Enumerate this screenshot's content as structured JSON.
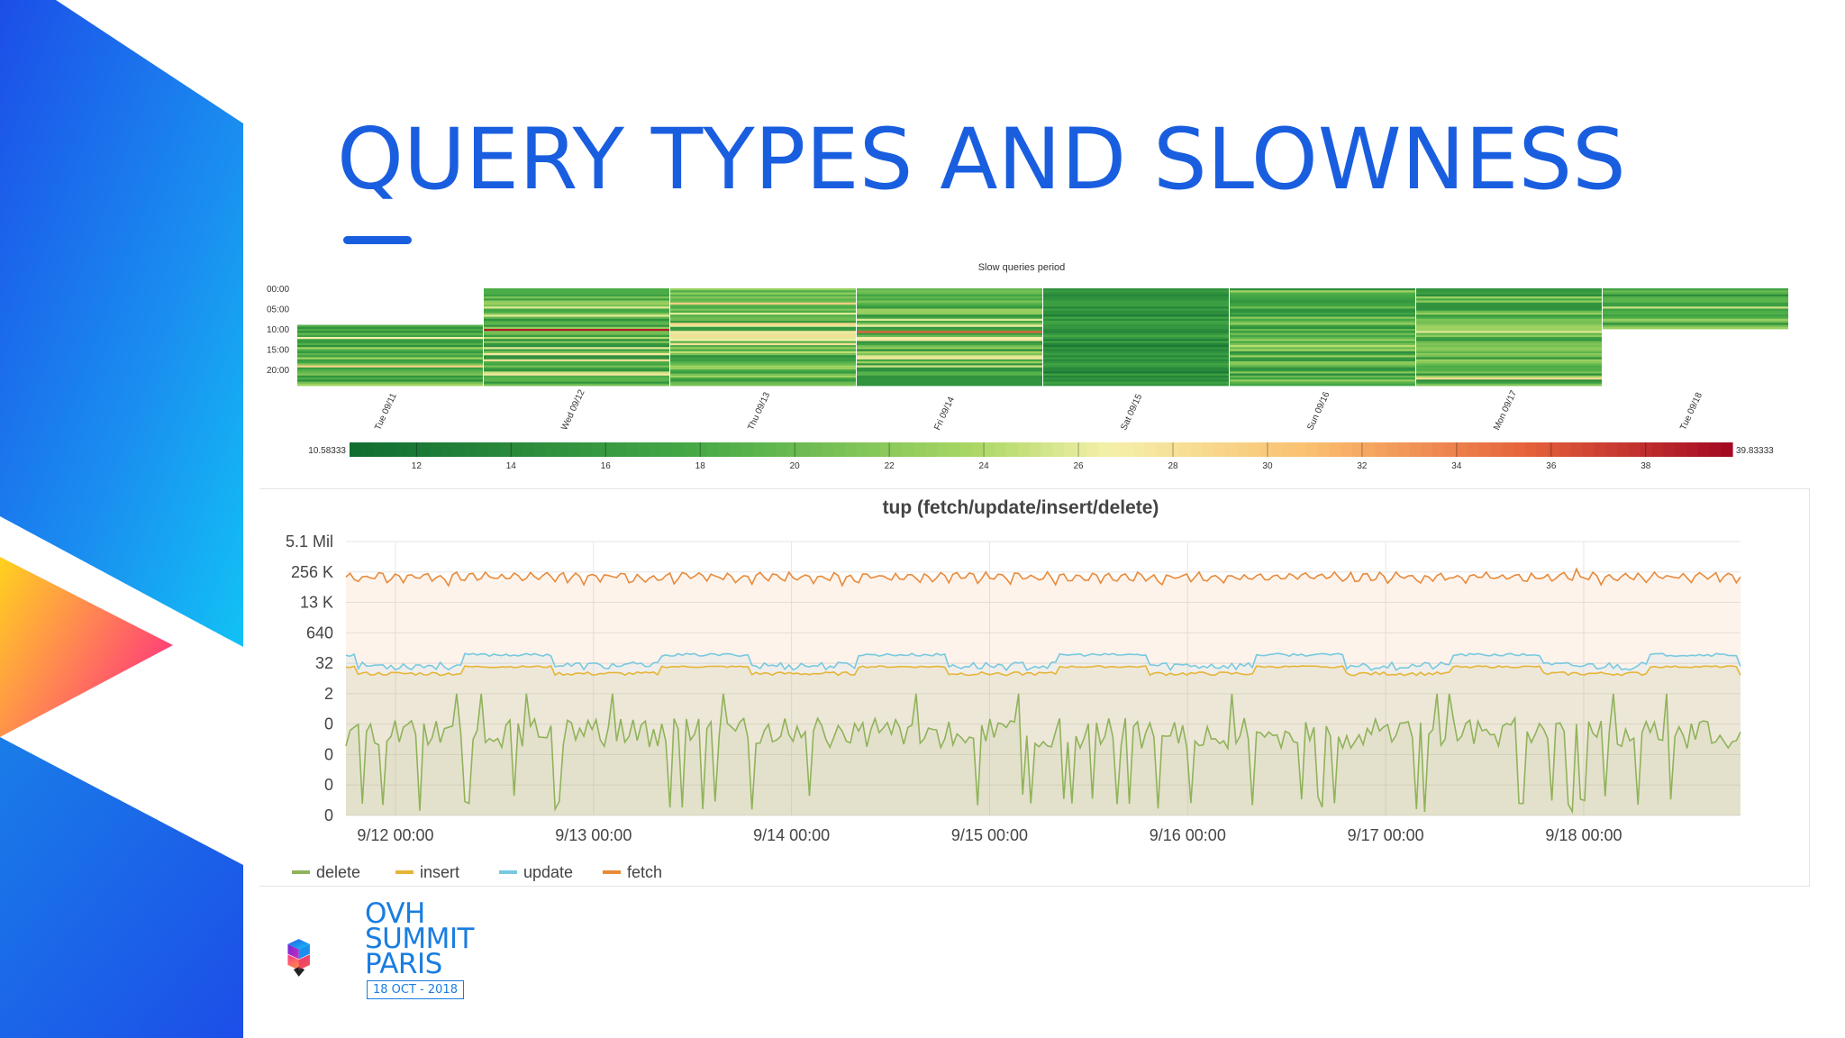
{
  "slide": {
    "title": "QUERY TYPES AND SLOWNESS"
  },
  "branding": {
    "line1": "OVH",
    "line2": "SUMMIT",
    "line3": "PARIS",
    "date": "18 OCT - 2018"
  },
  "colors": {
    "title_blue": "#1a5ee0",
    "logo_blue": "#1a7de0",
    "fetch": "#e88a3a",
    "update": "#78c9e0",
    "insert": "#e6b53a",
    "delete": "#8fb35a"
  },
  "chart_data": [
    {
      "type": "heatmap",
      "title": "Slow queries period",
      "y_ticks": [
        "00:00",
        "05:00",
        "10:00",
        "15:00",
        "20:00"
      ],
      "x_ticks": [
        "Tue 09/11",
        "Wed 09/12",
        "Thu 09/13",
        "Fri 09/14",
        "Sat 09/15",
        "Sun 09/16",
        "Mon 09/17",
        "Tue 09/18"
      ],
      "days": [
        {
          "label": "Tue 09/11",
          "start_hour": 9,
          "end_hour": 24
        },
        {
          "label": "Wed 09/12",
          "start_hour": 0,
          "end_hour": 24
        },
        {
          "label": "Thu 09/13",
          "start_hour": 0,
          "end_hour": 24
        },
        {
          "label": "Fri 09/14",
          "start_hour": 0,
          "end_hour": 24
        },
        {
          "label": "Sat 09/15",
          "start_hour": 0,
          "end_hour": 24
        },
        {
          "label": "Sun 09/16",
          "start_hour": 0,
          "end_hour": 24
        },
        {
          "label": "Mon 09/17",
          "start_hour": 0,
          "end_hour": 24
        },
        {
          "label": "Tue 09/18",
          "start_hour": 0,
          "end_hour": 10
        }
      ],
      "color_scale": {
        "min": 10.58333,
        "max": 39.83333,
        "min_label": "10.58333",
        "max_label": "39.83333",
        "ticks": [
          12,
          14,
          16,
          18,
          20,
          22,
          24,
          26,
          28,
          30,
          32,
          34,
          36,
          38
        ]
      }
    },
    {
      "type": "line",
      "title": "tup (fetch/update/insert/delete)",
      "y_ticks": [
        "5.1 Mil",
        "256 K",
        "13 K",
        "640",
        "32",
        "2",
        "0",
        "0",
        "0",
        "0"
      ],
      "x_ticks": [
        "9/12 00:00",
        "9/13 00:00",
        "9/14 00:00",
        "9/15 00:00",
        "9/16 00:00",
        "9/17 00:00",
        "9/18 00:00"
      ],
      "x_range": [
        "9/11 18:00",
        "9/18 19:00"
      ],
      "scale": "log",
      "series": [
        {
          "name": "delete",
          "approx_value": "0 to 2",
          "fill": true
        },
        {
          "name": "insert",
          "approx_value": "about 16",
          "fill": true
        },
        {
          "name": "update",
          "approx_value": "about 32",
          "fill": true
        },
        {
          "name": "fetch",
          "approx_value": "about 256 K",
          "fill": true
        }
      ],
      "legend": "bottom-left"
    }
  ]
}
